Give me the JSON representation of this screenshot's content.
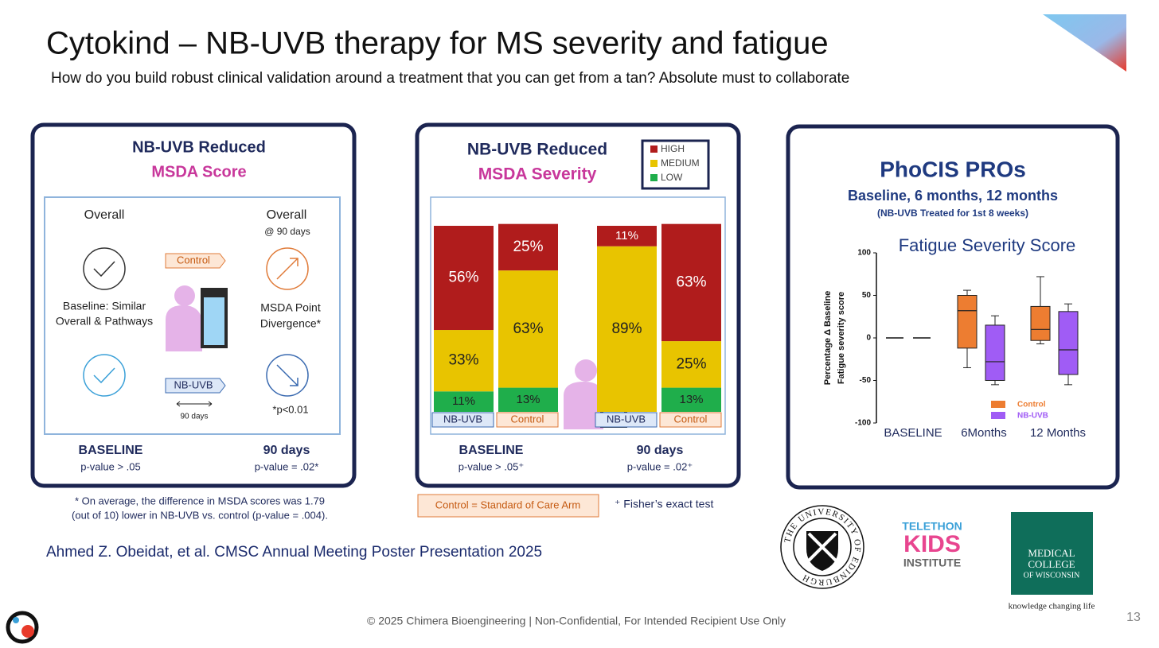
{
  "title": "Cytokind – NB-UVB therapy for MS severity and fatigue",
  "subtitle": "How do you build robust clinical validation around a treatment that you can get from a tan? Absolute must to collaborate",
  "score_panel": {
    "heading": [
      "NB-UVB Reduced",
      "MSDA Score"
    ],
    "overall_left": "Overall",
    "overall_right": "Overall",
    "at_90": "@ 90 days",
    "control_tag": "Control",
    "baseline_note": [
      "Baseline: Similar",
      "Overall & Pathways"
    ],
    "divergence": [
      "MSDA Point",
      "Divergence*"
    ],
    "nbuvb_tag": "NB-UVB",
    "duration": "90 days",
    "pval_note": "*p<0.01",
    "columns": [
      {
        "label": "BASELINE",
        "pvalue": "p-value > .05"
      },
      {
        "label": "90 days",
        "pvalue": "p-value = .02*"
      }
    ],
    "footnote": [
      "* On average, the difference in MSDA scores was 1.79",
      "(out of 10) lower in NB-UVB vs. control  (p-value = .004)."
    ]
  },
  "severity_panel": {
    "heading": [
      "NB-UVB Reduced",
      "MSDA Severity"
    ],
    "chart": {
      "type": "stacked-bar",
      "categories": [
        "NB-UVB",
        "Control",
        "NB-UVB",
        "Control"
      ],
      "series": [
        {
          "name": "HIGH",
          "color": "#b01c1c",
          "values": [
            56,
            25,
            11,
            63
          ],
          "value_labels": [
            "56%",
            "25%",
            "11%",
            "63%"
          ]
        },
        {
          "name": "MEDIUM",
          "color": "#e8c400",
          "values": [
            33,
            63,
            89,
            25
          ],
          "value_labels": [
            "33%",
            "63%",
            "89%",
            "25%"
          ]
        },
        {
          "name": "LOW",
          "color": "#1fae4b",
          "values": [
            11,
            13,
            null,
            13
          ],
          "value_labels": [
            "11%",
            "13%",
            null,
            "13%"
          ]
        }
      ],
      "ylim": [
        0,
        100
      ]
    },
    "columns": [
      {
        "label": "BASELINE",
        "pvalue": "p-value > .05⁺"
      },
      {
        "label": "90 days",
        "pvalue": "p-value = .02⁺"
      }
    ],
    "control_note": "Control = Standard of Care Arm",
    "test_note": "⁺ Fisher’s exact test"
  },
  "fatigue_panel": {
    "heading": "PhoCIS PROs",
    "subheading": "Baseline, 6 months, 12 months",
    "note": "(NB-UVB Treated for 1st 8 weeks)",
    "chart": {
      "type": "box",
      "title": "Fatigue Severity Score",
      "ylabel": [
        "Percentage Δ Baseline",
        "Fatigue severity score"
      ],
      "categories": [
        "BASELINE",
        "6Months",
        "12 Months"
      ],
      "ylim": [
        -100,
        100
      ],
      "yticks": [
        100,
        50,
        0,
        -50,
        -100
      ],
      "series": [
        {
          "name": "Control",
          "color": "#ed7d31",
          "boxes": [
            {
              "median": 0
            },
            {
              "min": -35,
              "q1": -12,
              "median": 32,
              "q3": 50,
              "max": 56
            },
            {
              "min": -7,
              "q1": -3,
              "median": 10,
              "q3": 37,
              "max": 72
            }
          ]
        },
        {
          "name": "NB-UVB",
          "color": "#a05cf5",
          "boxes": [
            {
              "median": 0
            },
            {
              "min": -55,
              "q1": -50,
              "median": -28,
              "q3": 15,
              "max": 26
            },
            {
              "min": -55,
              "q1": -43,
              "median": -14,
              "q3": 31,
              "max": 40
            }
          ]
        }
      ]
    }
  },
  "citation": "Ahmed Z. Obeidat, et al. CMSC Annual Meeting Poster Presentation 2025",
  "logos": {
    "edinburgh": "THE UNIVERSITY OF EDINBURGH",
    "telethon": [
      "TELETHON",
      "KIDS",
      "INSTITUTE"
    ],
    "mcw": [
      "MEDICAL",
      "COLLEGE",
      "OF WISCONSIN"
    ],
    "mcw_tagline": "knowledge changing life"
  },
  "footer": "© 2025 Chimera Bioengineering | Non-Confidential, For Intended Recipient Use Only",
  "page_number": "13"
}
